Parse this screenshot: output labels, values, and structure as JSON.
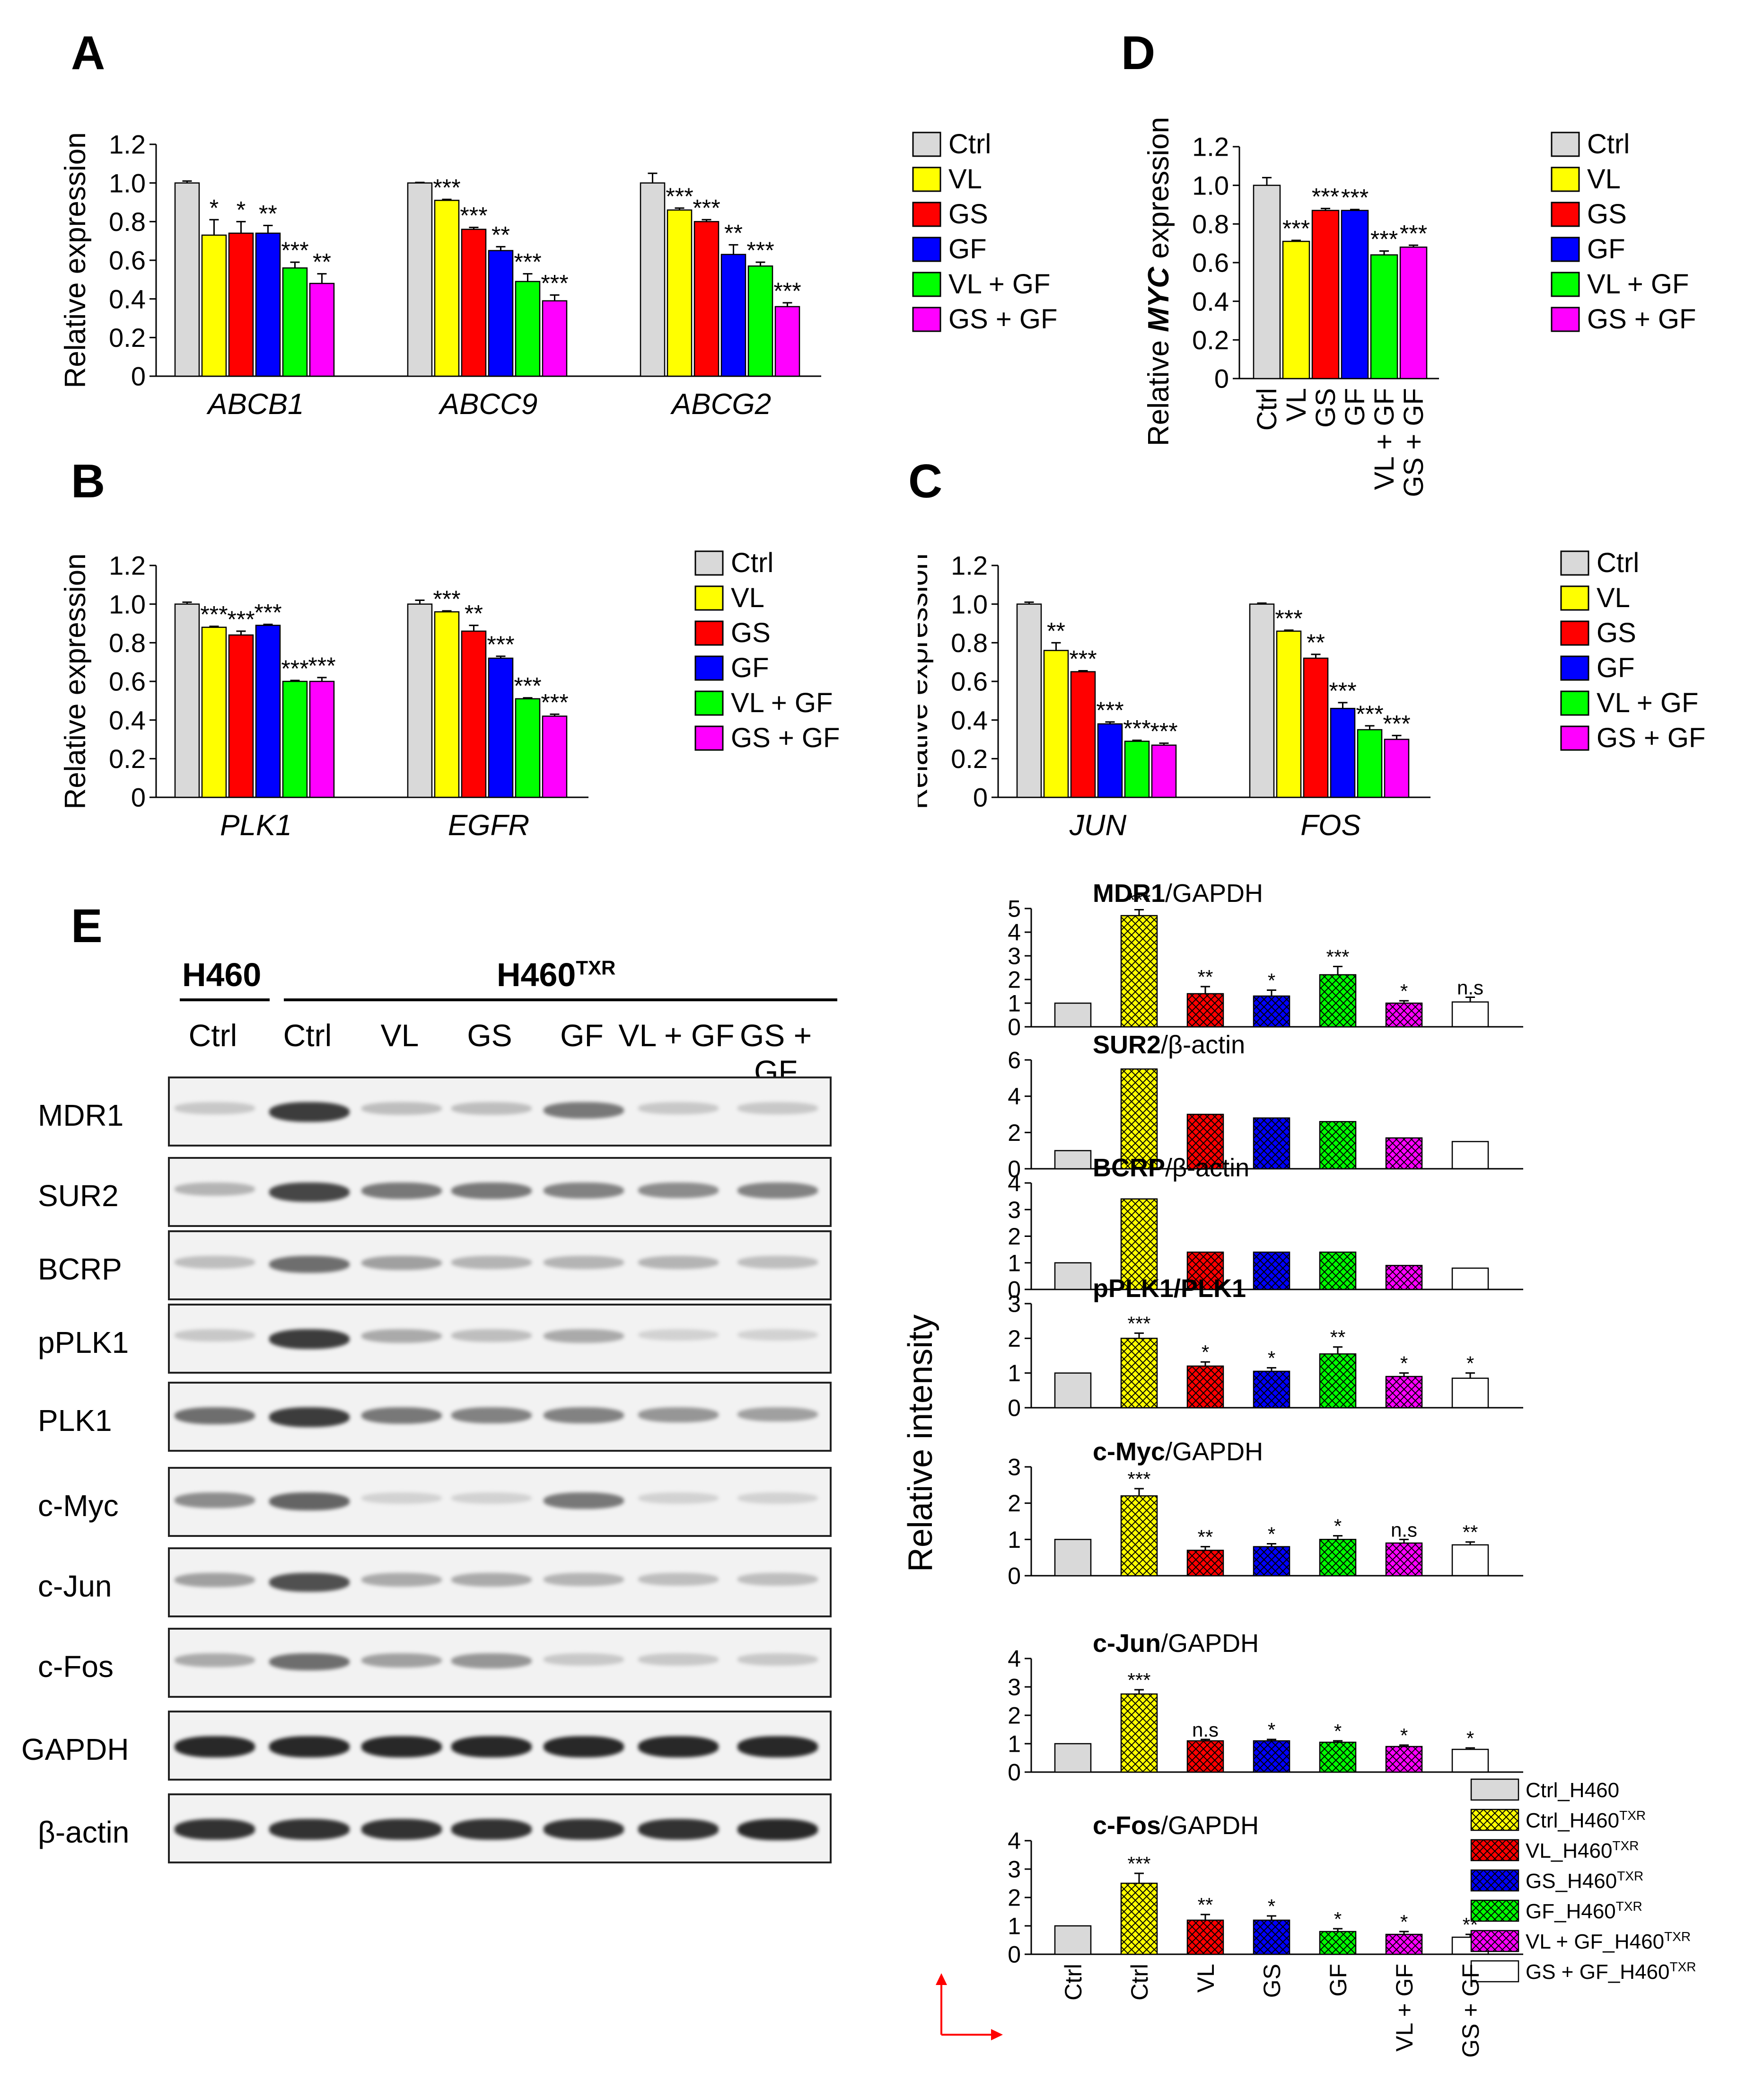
{
  "panel_labels": {
    "A": "A",
    "B": "B",
    "C": "C",
    "D": "D",
    "E": "E"
  },
  "legend_labels": [
    "Ctrl",
    "VL",
    "GS",
    "GF",
    "VL + GF",
    "GS + GF"
  ],
  "colors": {
    "Ctrl": "#d9d9d9",
    "VL": "#ffff00",
    "GS": "#ff0000",
    "GF": "#0000ff",
    "VL + GF": "#00ff00",
    "GS + GF": "#ff00ff"
  },
  "chart_data": [
    {
      "id": "A",
      "type": "bar",
      "ylabel": "Relative expression",
      "ylim": [
        0,
        1.2
      ],
      "yticks": [
        "0",
        "0.2",
        "0.4",
        "0.6",
        "0.8",
        "1.0",
        "1.2"
      ],
      "categories": [
        "ABCB1",
        "ABCC9",
        "ABCG2"
      ],
      "series": [
        {
          "name": "Ctrl",
          "values": [
            1.0,
            1.0,
            1.0
          ],
          "errors": [
            0.01,
            0.003,
            0.05
          ],
          "sig": [
            "",
            "",
            ""
          ]
        },
        {
          "name": "VL",
          "values": [
            0.73,
            0.91,
            0.86
          ],
          "errors": [
            0.08,
            0.005,
            0.01
          ],
          "sig": [
            "*",
            "***",
            "***"
          ]
        },
        {
          "name": "GS",
          "values": [
            0.74,
            0.76,
            0.8
          ],
          "errors": [
            0.06,
            0.01,
            0.01
          ],
          "sig": [
            "*",
            "***",
            "***"
          ]
        },
        {
          "name": "GF",
          "values": [
            0.74,
            0.65,
            0.63
          ],
          "errors": [
            0.04,
            0.02,
            0.05
          ],
          "sig": [
            "**",
            "**",
            "**"
          ]
        },
        {
          "name": "VL + GF",
          "values": [
            0.56,
            0.49,
            0.57
          ],
          "errors": [
            0.03,
            0.04,
            0.02
          ],
          "sig": [
            "***",
            "***",
            "***"
          ]
        },
        {
          "name": "GS + GF",
          "values": [
            0.48,
            0.39,
            0.36
          ],
          "errors": [
            0.05,
            0.03,
            0.02
          ],
          "sig": [
            "**",
            "***",
            "***"
          ]
        }
      ]
    },
    {
      "id": "B",
      "type": "bar",
      "ylabel": "Relative expression",
      "ylim": [
        0,
        1.2
      ],
      "yticks": [
        "0",
        "0.2",
        "0.4",
        "0.6",
        "0.8",
        "1.0",
        "1.2"
      ],
      "categories": [
        "PLK1",
        "EGFR"
      ],
      "series": [
        {
          "name": "Ctrl",
          "values": [
            1.0,
            1.0
          ],
          "errors": [
            0.01,
            0.02
          ],
          "sig": [
            "",
            ""
          ]
        },
        {
          "name": "VL",
          "values": [
            0.88,
            0.96
          ],
          "errors": [
            0.005,
            0.005
          ],
          "sig": [
            "***",
            "***"
          ]
        },
        {
          "name": "GS",
          "values": [
            0.84,
            0.86
          ],
          "errors": [
            0.02,
            0.03
          ],
          "sig": [
            "***",
            "**"
          ]
        },
        {
          "name": "GF",
          "values": [
            0.89,
            0.72
          ],
          "errors": [
            0.005,
            0.01
          ],
          "sig": [
            "***",
            "***"
          ]
        },
        {
          "name": "VL + GF",
          "values": [
            0.6,
            0.51
          ],
          "errors": [
            0.005,
            0.005
          ],
          "sig": [
            "***",
            "***"
          ]
        },
        {
          "name": "GS + GF",
          "values": [
            0.6,
            0.42
          ],
          "errors": [
            0.02,
            0.01
          ],
          "sig": [
            "***",
            "***"
          ]
        }
      ]
    },
    {
      "id": "C",
      "type": "bar",
      "ylabel": "Relative expression",
      "ylim": [
        0,
        1.2
      ],
      "yticks": [
        "0",
        "0.2",
        "0.4",
        "0.6",
        "0.8",
        "1.0",
        "1.2"
      ],
      "categories": [
        "JUN",
        "FOS"
      ],
      "series": [
        {
          "name": "Ctrl",
          "values": [
            1.0,
            1.0
          ],
          "errors": [
            0.01,
            0.005
          ],
          "sig": [
            "",
            ""
          ]
        },
        {
          "name": "VL",
          "values": [
            0.76,
            0.86
          ],
          "errors": [
            0.04,
            0.005
          ],
          "sig": [
            "**",
            "***"
          ]
        },
        {
          "name": "GS",
          "values": [
            0.65,
            0.72
          ],
          "errors": [
            0.005,
            0.02
          ],
          "sig": [
            "***",
            "**"
          ]
        },
        {
          "name": "GF",
          "values": [
            0.38,
            0.46
          ],
          "errors": [
            0.01,
            0.03
          ],
          "sig": [
            "***",
            "***"
          ]
        },
        {
          "name": "VL + GF",
          "values": [
            0.29,
            0.35
          ],
          "errors": [
            0.005,
            0.02
          ],
          "sig": [
            "***",
            "***"
          ]
        },
        {
          "name": "GS + GF",
          "values": [
            0.27,
            0.3
          ],
          "errors": [
            0.01,
            0.02
          ],
          "sig": [
            "***",
            "***"
          ]
        }
      ]
    },
    {
      "id": "D",
      "type": "bar",
      "ylabel_parts": [
        "Relative ",
        "MYC",
        " expression"
      ],
      "ylim": [
        0,
        1.2
      ],
      "yticks": [
        "0",
        "0.2",
        "0.4",
        "0.6",
        "0.8",
        "1.0",
        "1.2"
      ],
      "categories": [
        "Ctrl",
        "VL",
        "GS",
        "GF",
        "VL + GF",
        "GS + GF"
      ],
      "values": [
        1.0,
        0.71,
        0.87,
        0.87,
        0.64,
        0.68
      ],
      "errors": [
        0.04,
        0.005,
        0.01,
        0.005,
        0.02,
        0.01
      ],
      "sig": [
        "",
        "***",
        "***",
        "***",
        "***",
        "***"
      ]
    },
    {
      "id": "E",
      "type": "bar",
      "ylabel": "Relative intensity",
      "categories": [
        "Ctrl",
        "Ctrl",
        "VL",
        "GS",
        "GF",
        "VL + GF",
        "GS + GF"
      ],
      "legend": [
        "Ctrl_H460",
        "Ctrl_H460",
        "VL_H460",
        "GS_H460",
        "GF_H460",
        "VL + GF_H460",
        "GS + GF_H460"
      ],
      "legend_sup": [
        "",
        "TXR",
        "TXR",
        "TXR",
        "TXR",
        "TXR",
        "TXR"
      ],
      "panels": [
        {
          "title_bold": "MDR1",
          "title_rest": "/GAPDH",
          "ymax": 5,
          "yticks": [
            "0",
            "1",
            "2",
            "3",
            "4",
            "5"
          ],
          "values": [
            1.0,
            4.7,
            1.4,
            1.3,
            2.2,
            1.0,
            1.05
          ],
          "errors": [
            0,
            0.25,
            0.3,
            0.25,
            0.35,
            0.1,
            0.2
          ],
          "sig": [
            "",
            "***",
            "**",
            "*",
            "***",
            "*",
            "n.s"
          ]
        },
        {
          "title_bold": "SUR2",
          "title_rest": "/β-actin",
          "ymax": 6,
          "yticks": [
            "0",
            "2",
            "4",
            "6"
          ],
          "values": [
            1.0,
            5.5,
            3.0,
            2.8,
            2.6,
            1.7,
            1.5
          ],
          "errors": [
            0,
            0,
            0,
            0,
            0,
            0,
            0
          ],
          "sig": [
            "",
            "",
            "",
            "",
            "",
            "",
            ""
          ]
        },
        {
          "title_bold": "BCRP",
          "title_rest": "/β-actin",
          "ymax": 4,
          "yticks": [
            "0",
            "1",
            "2",
            "3",
            "4"
          ],
          "values": [
            1.0,
            3.4,
            1.4,
            1.4,
            1.4,
            0.9,
            0.8
          ],
          "errors": [
            0,
            0,
            0,
            0,
            0,
            0,
            0
          ],
          "sig": [
            "",
            "",
            "",
            "",
            "",
            "",
            ""
          ]
        },
        {
          "title_bold": "pPLK1/PLK1",
          "title_rest": "",
          "ymax": 3,
          "yticks": [
            "0",
            "1",
            "2",
            "3"
          ],
          "values": [
            1.0,
            2.0,
            1.2,
            1.05,
            1.55,
            0.9,
            0.85
          ],
          "errors": [
            0,
            0.15,
            0.12,
            0.1,
            0.2,
            0.1,
            0.15
          ],
          "sig": [
            "",
            "***",
            "*",
            "*",
            "**",
            "*",
            "*"
          ]
        },
        {
          "title_bold": "c-Myc",
          "title_rest": "/GAPDH",
          "ymax": 3,
          "yticks": [
            "0",
            "1",
            "2",
            "3"
          ],
          "values": [
            1.0,
            2.2,
            0.7,
            0.8,
            1.0,
            0.9,
            0.85
          ],
          "errors": [
            0,
            0.2,
            0.1,
            0.08,
            0.1,
            0.1,
            0.08
          ],
          "sig": [
            "",
            "***",
            "**",
            "*",
            "*",
            "n.s",
            "**"
          ]
        },
        {
          "title_bold": "c-Jun",
          "title_rest": "/GAPDH",
          "ymax": 4,
          "yticks": [
            "0",
            "1",
            "2",
            "3",
            "4"
          ],
          "values": [
            1.0,
            2.75,
            1.1,
            1.1,
            1.05,
            0.9,
            0.8
          ],
          "errors": [
            0,
            0.15,
            0.05,
            0.05,
            0.05,
            0.05,
            0.05
          ],
          "sig": [
            "",
            "***",
            "n.s",
            "*",
            "*",
            "*",
            "*"
          ]
        },
        {
          "title_bold": "c-Fos",
          "title_rest": "/GAPDH",
          "ymax": 4,
          "yticks": [
            "0",
            "1",
            "2",
            "3",
            "4"
          ],
          "values": [
            1.0,
            2.5,
            1.2,
            1.2,
            0.8,
            0.7,
            0.6
          ],
          "errors": [
            0,
            0.35,
            0.2,
            0.15,
            0.1,
            0.1,
            0.1
          ],
          "sig": [
            "",
            "***",
            "**",
            "*",
            "*",
            "*",
            "**"
          ]
        }
      ]
    }
  ],
  "blot": {
    "header_h460": "H460",
    "header_txr": "H460",
    "header_txr_sup": "TXR",
    "lanes": [
      "Ctrl",
      "Ctrl",
      "VL",
      "GS",
      "GF",
      "VL + GF",
      "GS + GF"
    ],
    "rows": [
      {
        "name": "MDR1",
        "intensity": [
          0.15,
          0.85,
          0.2,
          0.2,
          0.55,
          0.15,
          0.15
        ]
      },
      {
        "name": "SUR2",
        "intensity": [
          0.25,
          0.8,
          0.55,
          0.55,
          0.5,
          0.45,
          0.5
        ]
      },
      {
        "name": "BCRP",
        "intensity": [
          0.2,
          0.6,
          0.35,
          0.25,
          0.25,
          0.25,
          0.2
        ]
      },
      {
        "name": "pPLK1",
        "intensity": [
          0.15,
          0.85,
          0.3,
          0.2,
          0.3,
          0.1,
          0.1
        ]
      },
      {
        "name": "PLK1",
        "intensity": [
          0.6,
          0.85,
          0.55,
          0.5,
          0.5,
          0.4,
          0.35
        ]
      },
      {
        "name": "c-Myc",
        "intensity": [
          0.45,
          0.65,
          0.1,
          0.1,
          0.55,
          0.1,
          0.1
        ]
      },
      {
        "name": "c-Jun",
        "intensity": [
          0.35,
          0.75,
          0.3,
          0.3,
          0.25,
          0.2,
          0.2
        ]
      },
      {
        "name": "c-Fos",
        "intensity": [
          0.3,
          0.6,
          0.35,
          0.4,
          0.15,
          0.15,
          0.15
        ]
      },
      {
        "name": "GAPDH",
        "intensity": [
          0.95,
          0.95,
          0.95,
          0.95,
          0.95,
          0.95,
          0.95
        ]
      },
      {
        "name": "β-actin",
        "intensity": [
          0.9,
          0.9,
          0.9,
          0.9,
          0.9,
          0.9,
          0.95
        ]
      }
    ]
  }
}
